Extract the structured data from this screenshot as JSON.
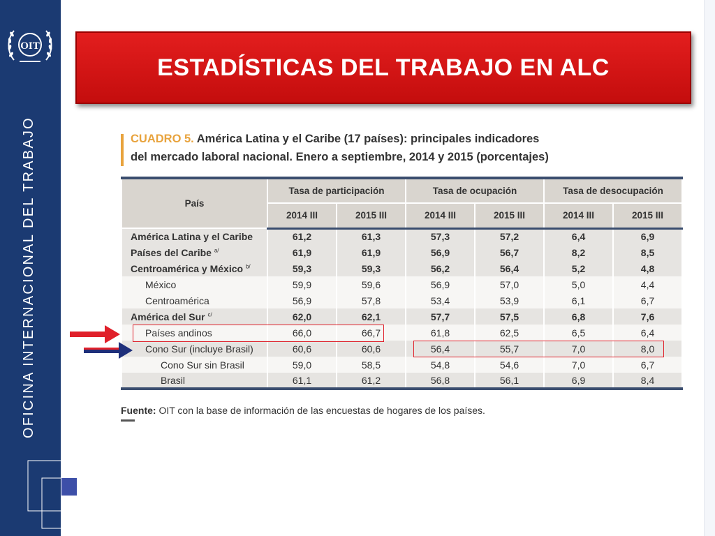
{
  "sidebar": {
    "logo_text": "OIT",
    "vertical_label": "OFICINA INTERNACIONAL DEL TRABAJO"
  },
  "slide_title": "ESTADÍSTICAS DEL TRABAJO EN ALC",
  "caption": {
    "label": "CUADRO 5.",
    "line1": "América Latina y el Caribe (17 países): principales indicadores",
    "line2": "del mercado laboral nacional. Enero a septiembre, 2014 y 2015 (porcentajes)"
  },
  "table": {
    "country_header": "País",
    "groups": [
      "Tasa de participación",
      "Tasa de ocupación",
      "Tasa de desocupación"
    ],
    "periods": [
      "2014 III",
      "2015 III",
      "2014 III",
      "2015 III",
      "2014 III",
      "2015 III"
    ],
    "rows": [
      {
        "name": "América Latina y el Caribe",
        "note": "",
        "values": [
          "61,2",
          "61,3",
          "57,3",
          "57,2",
          "6,4",
          "6,9"
        ]
      },
      {
        "name": "Países del Caribe",
        "note": "a/",
        "values": [
          "61,9",
          "61,9",
          "56,9",
          "56,7",
          "8,2",
          "8,5"
        ]
      },
      {
        "name": "Centroamérica y México",
        "note": "b/",
        "values": [
          "59,3",
          "59,3",
          "56,2",
          "56,4",
          "5,2",
          "4,8"
        ]
      },
      {
        "name": "México",
        "note": "",
        "values": [
          "59,9",
          "59,6",
          "56,9",
          "57,0",
          "5,0",
          "4,4"
        ]
      },
      {
        "name": "Centroamérica",
        "note": "",
        "values": [
          "56,9",
          "57,8",
          "53,4",
          "53,9",
          "6,1",
          "6,7"
        ]
      },
      {
        "name": "América del Sur",
        "note": "c/",
        "values": [
          "62,0",
          "62,1",
          "57,7",
          "57,5",
          "6,8",
          "7,6"
        ]
      },
      {
        "name": "Países andinos",
        "note": "",
        "values": [
          "66,0",
          "66,7",
          "61,8",
          "62,5",
          "6,5",
          "6,4"
        ]
      },
      {
        "name": "Cono Sur (incluye Brasil)",
        "note": "",
        "values": [
          "60,6",
          "60,6",
          "56,4",
          "55,7",
          "7,0",
          "8,0"
        ]
      },
      {
        "name": "Cono Sur sin Brasil",
        "note": "",
        "values": [
          "59,0",
          "58,5",
          "54,8",
          "54,6",
          "7,0",
          "6,7"
        ]
      },
      {
        "name": "Brasil",
        "note": "",
        "values": [
          "61,1",
          "61,2",
          "56,8",
          "56,1",
          "6,9",
          "8,4"
        ]
      }
    ]
  },
  "source": {
    "label": "Fuente:",
    "text": "OIT con la base de información de las encuestas de hogares de los países."
  },
  "colors": {
    "sidebar": "#1b3a72",
    "title_banner": "#d61616",
    "caption_accent": "#e8a33d",
    "highlight": "#e0202a",
    "arrow_red": "#e0202a",
    "arrow_navy": "#1e2f7a"
  }
}
